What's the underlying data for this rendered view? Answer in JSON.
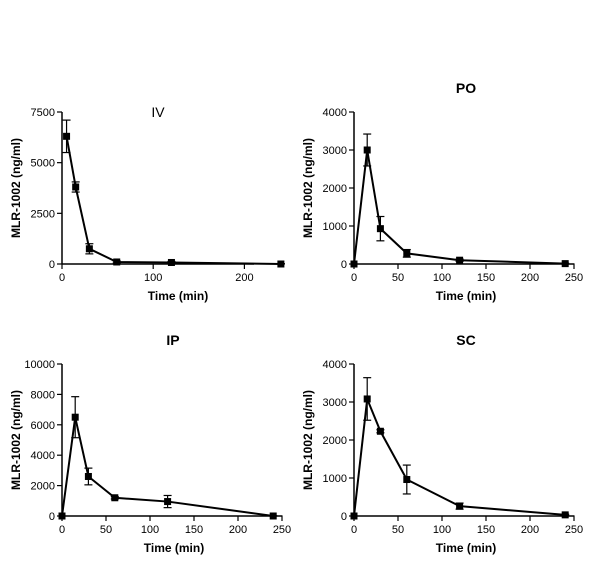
{
  "chart_data": [
    {
      "type": "line",
      "title": "IV",
      "xlabel": "Time (min)",
      "ylabel": "MLR-1002 (ng/ml)",
      "xlim": [
        0,
        250
      ],
      "ylim": [
        0,
        7500
      ],
      "xticks": [
        0,
        100,
        200
      ],
      "yticks": [
        0,
        2500,
        5000,
        7500
      ],
      "x": [
        5,
        15,
        30,
        60,
        120,
        240
      ],
      "y": [
        6300,
        3800,
        750,
        100,
        75,
        0
      ],
      "error": [
        800,
        250,
        250,
        50,
        50,
        20
      ],
      "grid": false
    },
    {
      "type": "line",
      "title": "PO",
      "xlabel": "Time (min)",
      "ylabel": "MLR-1002 (ng/ml)",
      "xlim": [
        0,
        250
      ],
      "ylim": [
        0,
        4000
      ],
      "xticks": [
        0,
        50,
        100,
        150,
        200,
        250
      ],
      "yticks": [
        0,
        1000,
        2000,
        3000,
        4000
      ],
      "x": [
        0,
        15,
        30,
        60,
        120,
        240
      ],
      "y": [
        0,
        3000,
        930,
        280,
        100,
        10
      ],
      "error": [
        0,
        420,
        320,
        100,
        30,
        10
      ],
      "grid": false
    },
    {
      "type": "line",
      "title": "IP",
      "xlabel": "Time (min)",
      "ylabel": "MLR-1002 (ng/ml)",
      "xlim": [
        0,
        250
      ],
      "ylim": [
        0,
        10000
      ],
      "xticks": [
        0,
        50,
        100,
        150,
        200,
        250
      ],
      "yticks": [
        0,
        2000,
        4000,
        6000,
        8000,
        10000
      ],
      "x": [
        0,
        15,
        30,
        60,
        120,
        240
      ],
      "y": [
        0,
        6500,
        2600,
        1200,
        950,
        0
      ],
      "error": [
        0,
        1350,
        550,
        80,
        400,
        20
      ],
      "grid": false
    },
    {
      "type": "line",
      "title": "SC",
      "xlabel": "Time (min)",
      "ylabel": "MLR-1002 (ng/ml)",
      "xlim": [
        0,
        250
      ],
      "ylim": [
        0,
        4000
      ],
      "xticks": [
        0,
        50,
        100,
        150,
        200,
        250
      ],
      "yticks": [
        0,
        1000,
        2000,
        3000,
        4000
      ],
      "x": [
        0,
        15,
        30,
        60,
        120,
        240
      ],
      "y": [
        0,
        3080,
        2230,
        960,
        260,
        30
      ],
      "error": [
        0,
        560,
        40,
        380,
        80,
        15
      ],
      "grid": false
    }
  ],
  "colors": {
    "line": "#000000",
    "marker": "#000000"
  }
}
